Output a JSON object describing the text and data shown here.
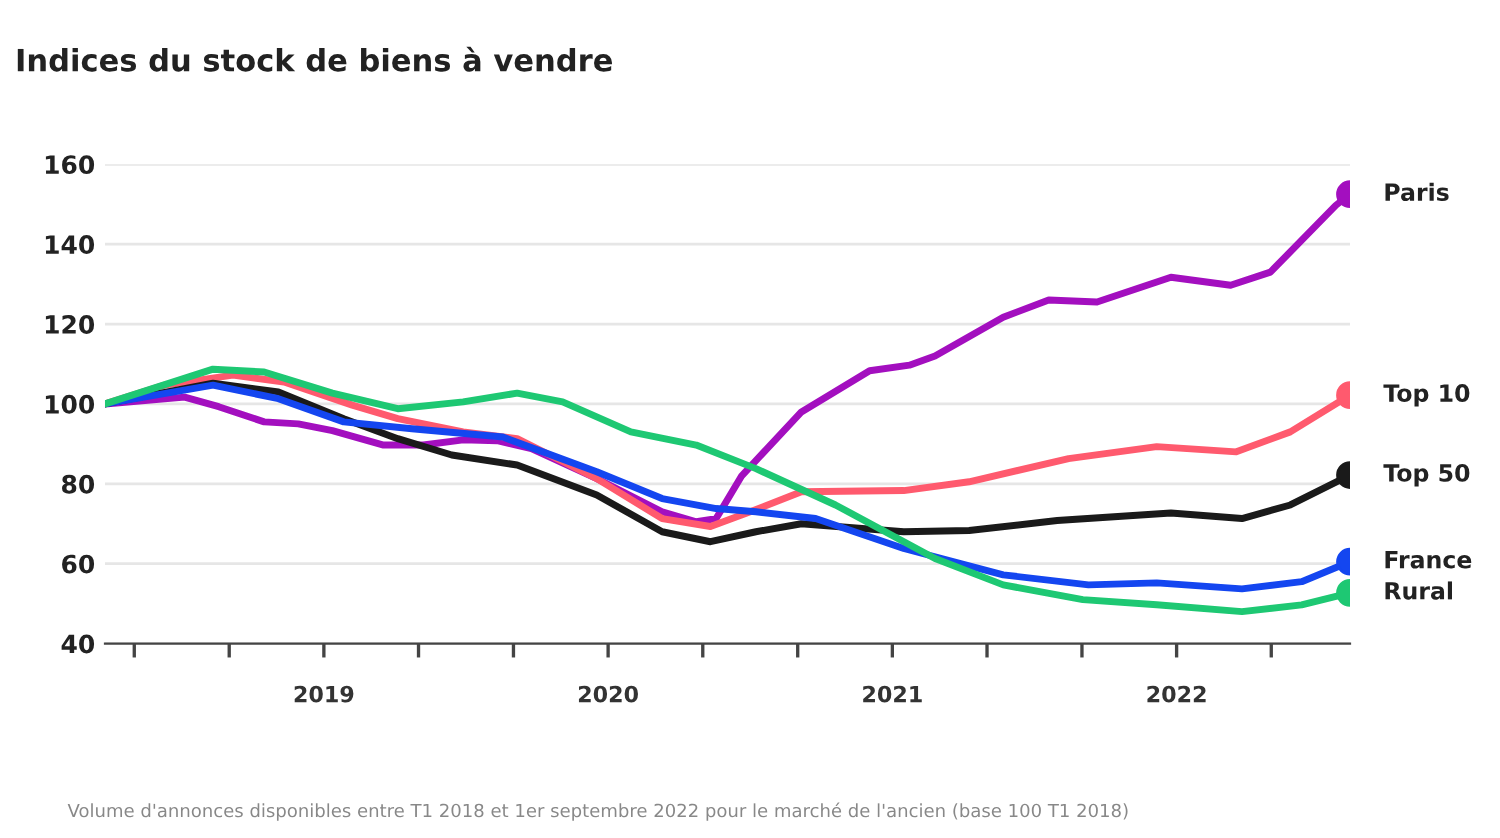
{
  "chart_data": {
    "type": "line",
    "title": "Indices du stock de biens à vendre",
    "annotations": [
      "Volume d'annonces disponibles entre T1 2018 et 1er septembre 2022 pour le marché de l'ancien (base 100 T1 2018)"
    ],
    "series": [
      {
        "name": "Paris",
        "color": "#a30fbf",
        "x": [
          2018.23,
          2018.51,
          2018.63,
          2018.79,
          2018.91,
          2019.03,
          2019.21,
          2019.35,
          2019.49,
          2019.61,
          2019.73,
          2019.96,
          2020.19,
          2020.31,
          2020.38,
          2020.47,
          2020.68,
          2020.92,
          2021.06,
          2021.15,
          2021.39,
          2021.55,
          2021.72,
          2021.98,
          2022.19,
          2022.33,
          2022.56,
          2022.61
        ],
        "values": [
          100,
          101.7,
          99.3,
          95.5,
          95,
          93.3,
          89.7,
          89.7,
          91,
          90.8,
          88.8,
          81.3,
          73,
          70.5,
          71.3,
          82,
          98,
          108.3,
          109.7,
          112,
          121.7,
          126,
          125.5,
          131.7,
          129.7,
          133,
          149.7,
          152.5
        ]
      },
      {
        "name": "Top 10",
        "color": "#ff5a6e",
        "x": [
          2018.23,
          2018.44,
          2018.68,
          2018.86,
          2019.1,
          2019.26,
          2019.49,
          2019.68,
          2019.96,
          2020.19,
          2020.36,
          2020.5,
          2020.68,
          2021.04,
          2021.27,
          2021.62,
          2021.93,
          2022.21,
          2022.4,
          2022.61
        ],
        "values": [
          100,
          104.7,
          107.2,
          105.5,
          99.7,
          96.3,
          93,
          91.3,
          81.3,
          71.3,
          69.3,
          73,
          78,
          78.3,
          80.5,
          86.3,
          89.3,
          88,
          93,
          102.2
        ]
      },
      {
        "name": "Top 50",
        "color": "#1a1a1a",
        "x": [
          2018.23,
          2018.61,
          2018.84,
          2019.07,
          2019.26,
          2019.45,
          2019.68,
          2019.96,
          2020.19,
          2020.36,
          2020.52,
          2020.68,
          2021.04,
          2021.27,
          2021.58,
          2021.98,
          2022.23,
          2022.4,
          2022.61
        ],
        "values": [
          100,
          105.2,
          103,
          96.3,
          91.3,
          87.2,
          84.7,
          77.2,
          68,
          65.5,
          68,
          70,
          68,
          68.3,
          70.8,
          72.7,
          71.3,
          74.7,
          82.2
        ]
      },
      {
        "name": "France",
        "color": "#1446f0",
        "x": [
          2018.23,
          2018.61,
          2018.84,
          2019.07,
          2019.31,
          2019.63,
          2019.96,
          2020.19,
          2020.38,
          2020.52,
          2020.73,
          2021.04,
          2021.39,
          2021.69,
          2021.93,
          2022.23,
          2022.44,
          2022.61
        ],
        "values": [
          100,
          104.7,
          101.3,
          95.5,
          93.8,
          91.7,
          83,
          76.3,
          73.8,
          73,
          71.3,
          63.8,
          57.2,
          54.7,
          55.2,
          53.7,
          55.5,
          60.5
        ]
      },
      {
        "name": "Rural",
        "color": "#1ec873",
        "x": [
          2018.23,
          2018.61,
          2018.79,
          2019.03,
          2019.26,
          2019.49,
          2019.68,
          2019.84,
          2020.08,
          2020.31,
          2020.52,
          2020.8,
          2021.15,
          2021.39,
          2021.67,
          2021.93,
          2022.23,
          2022.44,
          2022.61
        ],
        "values": [
          100,
          108.7,
          108,
          102.7,
          98.8,
          100.5,
          102.7,
          100.5,
          93,
          89.7,
          83.8,
          74.7,
          61.3,
          54.7,
          51,
          49.7,
          48,
          49.7,
          52.7
        ]
      }
    ],
    "xlim": [
      2018.23,
      2022.61
    ],
    "xticks": [
      {
        "value": 2018.333,
        "label": null
      },
      {
        "value": 2018.667,
        "label": null
      },
      {
        "value": 2019,
        "label": "2019"
      },
      {
        "value": 2019.333,
        "label": null
      },
      {
        "value": 2019.667,
        "label": null
      },
      {
        "value": 2020,
        "label": "2020"
      },
      {
        "value": 2020.333,
        "label": null
      },
      {
        "value": 2020.667,
        "label": null
      },
      {
        "value": 2021,
        "label": "2021"
      },
      {
        "value": 2021.333,
        "label": null
      },
      {
        "value": 2021.667,
        "label": null
      },
      {
        "value": 2022,
        "label": "2022"
      },
      {
        "value": 2022.333,
        "label": null
      }
    ],
    "ylim": [
      40,
      160
    ],
    "yticks": [
      40,
      60,
      80,
      100,
      120,
      140,
      160
    ],
    "grid": "y"
  }
}
